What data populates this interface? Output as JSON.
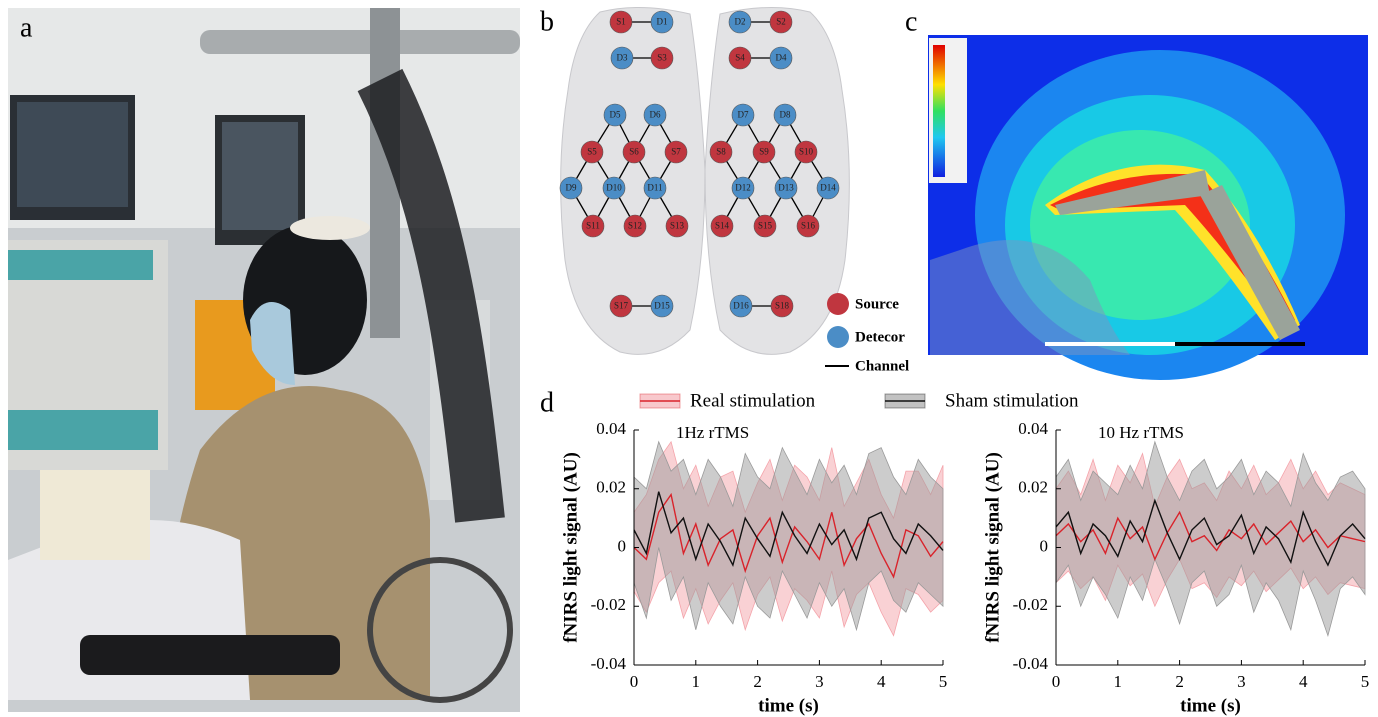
{
  "panel_labels": [
    "a",
    "b",
    "c",
    "d"
  ],
  "probe_map": {
    "nodes": [
      "S1",
      "D1",
      "D3",
      "S3",
      "D5",
      "D6",
      "S5",
      "S6",
      "S7",
      "D9",
      "D10",
      "D11",
      "S11",
      "S12",
      "S13",
      "S17",
      "D15",
      "D2",
      "S2",
      "S4",
      "D4",
      "D7",
      "D8",
      "S8",
      "S9",
      "S10",
      "D12",
      "D13",
      "D14",
      "S14",
      "S15",
      "S16",
      "D16",
      "S18"
    ],
    "legend": [
      {
        "label": "Source",
        "color": "#c0363f"
      },
      {
        "label": "Detecor",
        "color": "#4b8dc6"
      },
      {
        "label": "Channel",
        "color": "#000000"
      }
    ]
  },
  "legend": [
    {
      "name": "Real stimulation",
      "color": "#d9232b",
      "band_color": "#f4a3aa"
    },
    {
      "name": "Sham stimulation",
      "color": "#111111",
      "band_color": "#9a9a9a"
    }
  ],
  "chart_data": [
    {
      "type": "line",
      "title": "1Hz rTMS",
      "x_label": "time (s)",
      "y_label": "fNIRS light signal (AU)",
      "xlim": [
        0,
        5
      ],
      "xticks": [
        0,
        1,
        2,
        3,
        4,
        5
      ],
      "ylim": [
        -0.04,
        0.04
      ],
      "yticks": [
        -0.04,
        -0.02,
        0,
        0.02,
        0.04
      ],
      "x": [
        0,
        0.2,
        0.4,
        0.6,
        0.8,
        1,
        1.2,
        1.4,
        1.6,
        1.8,
        2,
        2.2,
        2.4,
        2.6,
        2.8,
        3,
        3.2,
        3.4,
        3.6,
        3.8,
        4,
        4.2,
        4.4,
        4.6,
        4.8,
        5
      ],
      "series": [
        {
          "color": "#d9232b",
          "values": [
            0,
            -0.004,
            0.012,
            0.018,
            -0.002,
            0.008,
            -0.006,
            0.003,
            0.006,
            -0.008,
            0.004,
            0.01,
            -0.005,
            0.007,
            0.002,
            -0.004,
            0.012,
            -0.006,
            0.003,
            0.008,
            -0.002,
            -0.01,
            0.006,
            0.004,
            -0.003,
            0.002
          ],
          "lower": [
            -0.015,
            -0.022,
            -0.012,
            -0.008,
            -0.024,
            -0.014,
            -0.026,
            -0.018,
            -0.012,
            -0.028,
            -0.016,
            -0.01,
            -0.025,
            -0.014,
            -0.018,
            -0.024,
            -0.008,
            -0.027,
            -0.016,
            -0.012,
            -0.022,
            -0.03,
            -0.014,
            -0.016,
            -0.022,
            -0.018
          ],
          "upper": [
            0.012,
            0.018,
            0.03,
            0.036,
            0.02,
            0.028,
            0.014,
            0.024,
            0.026,
            0.012,
            0.022,
            0.03,
            0.016,
            0.028,
            0.024,
            0.016,
            0.034,
            0.014,
            0.022,
            0.03,
            0.018,
            0.01,
            0.026,
            0.026,
            0.018,
            0.028
          ]
        },
        {
          "color": "#111111",
          "values": [
            0.006,
            -0.002,
            0.019,
            0.005,
            0.01,
            -0.004,
            0.008,
            0.002,
            -0.006,
            0.01,
            0.003,
            -0.003,
            0.012,
            0.004,
            -0.002,
            0.008,
            0.001,
            0.006,
            -0.004,
            0.01,
            0.012,
            0.003,
            -0.002,
            0.008,
            0.004,
            -0.001
          ],
          "lower": [
            -0.012,
            -0.024,
            0,
            -0.018,
            -0.01,
            -0.028,
            -0.012,
            -0.02,
            -0.026,
            -0.01,
            -0.02,
            -0.024,
            -0.008,
            -0.016,
            -0.024,
            -0.012,
            -0.02,
            -0.014,
            -0.028,
            -0.012,
            -0.008,
            -0.018,
            -0.022,
            -0.012,
            -0.016,
            -0.02
          ],
          "upper": [
            0.024,
            0.02,
            0.036,
            0.026,
            0.03,
            0.018,
            0.03,
            0.024,
            0.014,
            0.032,
            0.024,
            0.02,
            0.034,
            0.026,
            0.018,
            0.03,
            0.022,
            0.028,
            0.018,
            0.032,
            0.034,
            0.024,
            0.018,
            0.03,
            0.024,
            0.02
          ]
        }
      ]
    },
    {
      "type": "line",
      "title": "10 Hz rTMS",
      "x_label": "time (s)",
      "y_label": "fNIRS light signal (AU)",
      "xlim": [
        0,
        5
      ],
      "xticks": [
        0,
        1,
        2,
        3,
        4,
        5
      ],
      "ylim": [
        -0.04,
        0.04
      ],
      "yticks": [
        -0.04,
        -0.02,
        0,
        0.02,
        0.04
      ],
      "x": [
        0,
        0.2,
        0.4,
        0.6,
        0.8,
        1,
        1.2,
        1.4,
        1.6,
        1.8,
        2,
        2.2,
        2.4,
        2.6,
        2.8,
        3,
        3.2,
        3.4,
        3.6,
        3.8,
        4,
        4.2,
        4.4,
        4.6,
        4.8,
        5
      ],
      "series": [
        {
          "color": "#d9232b",
          "values": [
            0.004,
            0.008,
            0.002,
            0.006,
            -0.002,
            0.01,
            0.003,
            0.007,
            -0.004,
            0.005,
            0.012,
            0.002,
            0.004,
            -0.001,
            0.006,
            0.003,
            0.008,
            0.001,
            0.005,
            0.009,
            0.002,
            0.006,
            0,
            0.004,
            0.003,
            0.002
          ],
          "lower": [
            -0.012,
            -0.008,
            -0.014,
            -0.01,
            -0.018,
            -0.006,
            -0.013,
            -0.009,
            -0.02,
            -0.011,
            -0.004,
            -0.014,
            -0.012,
            -0.017,
            -0.01,
            -0.013,
            -0.008,
            -0.015,
            -0.011,
            -0.007,
            -0.014,
            -0.01,
            -0.016,
            -0.012,
            -0.013,
            -0.014
          ],
          "upper": [
            0.02,
            0.026,
            0.018,
            0.03,
            0.016,
            0.028,
            0.022,
            0.032,
            0.014,
            0.024,
            0.03,
            0.02,
            0.022,
            0.016,
            0.026,
            0.02,
            0.028,
            0.018,
            0.022,
            0.03,
            0.02,
            0.026,
            0.018,
            0.022,
            0.02,
            0.018
          ]
        },
        {
          "color": "#111111",
          "values": [
            0.007,
            0.012,
            -0.002,
            0.008,
            0.004,
            -0.003,
            0.009,
            0.002,
            0.016,
            0.005,
            -0.004,
            0.006,
            0.01,
            0.001,
            0.004,
            0.011,
            -0.002,
            0.007,
            0.003,
            -0.005,
            0.012,
            0.002,
            -0.006,
            0.004,
            0.008,
            0.003
          ],
          "lower": [
            -0.012,
            -0.006,
            -0.02,
            -0.01,
            -0.016,
            -0.024,
            -0.01,
            -0.018,
            -0.004,
            -0.014,
            -0.026,
            -0.012,
            -0.008,
            -0.02,
            -0.016,
            -0.006,
            -0.022,
            -0.012,
            -0.018,
            -0.028,
            -0.008,
            -0.018,
            -0.03,
            -0.014,
            -0.01,
            -0.016
          ],
          "upper": [
            0.024,
            0.03,
            0.016,
            0.026,
            0.022,
            0.018,
            0.028,
            0.02,
            0.036,
            0.024,
            0.016,
            0.026,
            0.03,
            0.02,
            0.024,
            0.03,
            0.018,
            0.026,
            0.022,
            0.014,
            0.032,
            0.022,
            0.016,
            0.024,
            0.026,
            0.02
          ]
        }
      ]
    }
  ]
}
